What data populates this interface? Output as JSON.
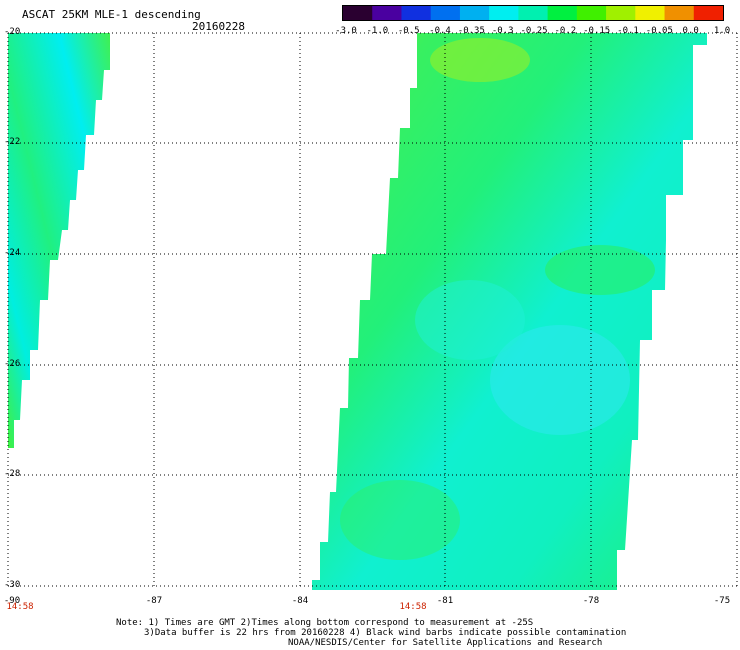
{
  "title": "ASCAT 25KM MLE-1 descending",
  "date": "20160228",
  "colorbar": {
    "labels": [
      "-3.0",
      "-1.0",
      "-0.5",
      "-0.4",
      "-0.35",
      "-0.3",
      "-0.25",
      "-0.2",
      "-0.15",
      "-0.1",
      "-0.05",
      "0.0",
      "1.0"
    ],
    "colors": [
      "#2a0030",
      "#4a00a0",
      "#1030e0",
      "#0070f0",
      "#00b0f0",
      "#00eef0",
      "#00f0b0",
      "#00f040",
      "#40f000",
      "#a0f000",
      "#f0f000",
      "#f09000",
      "#f02000"
    ]
  },
  "axes": {
    "lat_labels": [
      "-20",
      "-22",
      "-24",
      "-26",
      "-28",
      "-30"
    ],
    "lon_labels": [
      "-90",
      "-87",
      "-84",
      "-81",
      "-78",
      "-75"
    ],
    "lat_range": [
      -30,
      -20
    ],
    "lon_range": [
      -90,
      -75
    ]
  },
  "times": [
    "14:58",
    "14:58"
  ],
  "notes": [
    "Note: 1) Times are GMT 2)Times along bottom correspond to measurement at -25S",
    "3)Data buffer is 22 hrs from 20160228 4) Black wind barbs indicate possible contamination",
    "NOAA/NESDIS/Center for Satellite Applications and Research"
  ]
}
